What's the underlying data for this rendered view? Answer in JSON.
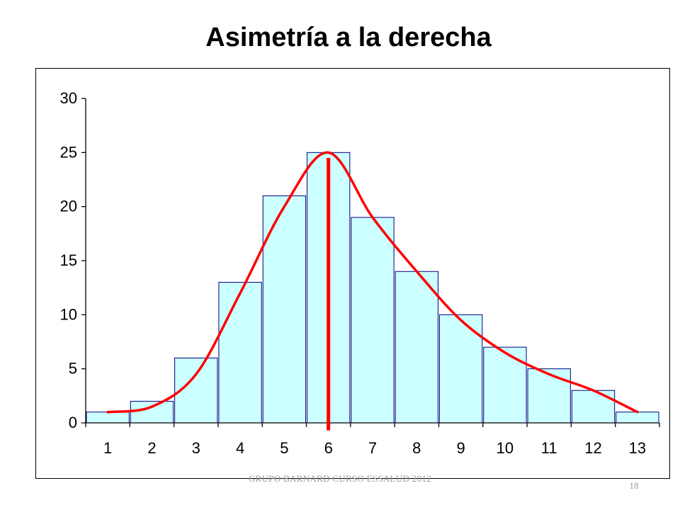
{
  "slide": {
    "title": "Asimetría a la derecha",
    "footer": "GRUPO BARNARD CURSO ESSALUD 2012",
    "page_number": "18"
  },
  "chart_data": {
    "type": "bar",
    "title": "Asimetría a la derecha",
    "xlabel": "",
    "ylabel": "",
    "categories": [
      "1",
      "2",
      "3",
      "4",
      "5",
      "6",
      "7",
      "8",
      "9",
      "10",
      "11",
      "12",
      "13"
    ],
    "values": [
      1,
      2,
      6,
      13,
      21,
      25,
      19,
      14,
      10,
      7,
      5,
      3,
      1
    ],
    "ylim": [
      0,
      30
    ],
    "yticks": [
      0,
      5,
      10,
      15,
      20,
      25,
      30
    ],
    "grid": false,
    "legend": "none",
    "overlays": {
      "smooth_curve": {
        "type": "line",
        "smooth": true,
        "points": [
          [
            1,
            1
          ],
          [
            2,
            1.5
          ],
          [
            3,
            4.5
          ],
          [
            4,
            12
          ],
          [
            5,
            20
          ],
          [
            6,
            25
          ],
          [
            7,
            19
          ],
          [
            8,
            14
          ],
          [
            9,
            9.5
          ],
          [
            10,
            6.5
          ],
          [
            11,
            4.5
          ],
          [
            12,
            3
          ],
          [
            13,
            1
          ]
        ]
      },
      "vertical_marker": {
        "x": 6,
        "y_from": -0.7,
        "y_to": 24.5
      }
    },
    "colors": {
      "bar_fill": "#ccffff",
      "bar_stroke": "#000080",
      "curve": "#ff0000",
      "marker": "#ff0000",
      "axis": "#000000"
    }
  }
}
